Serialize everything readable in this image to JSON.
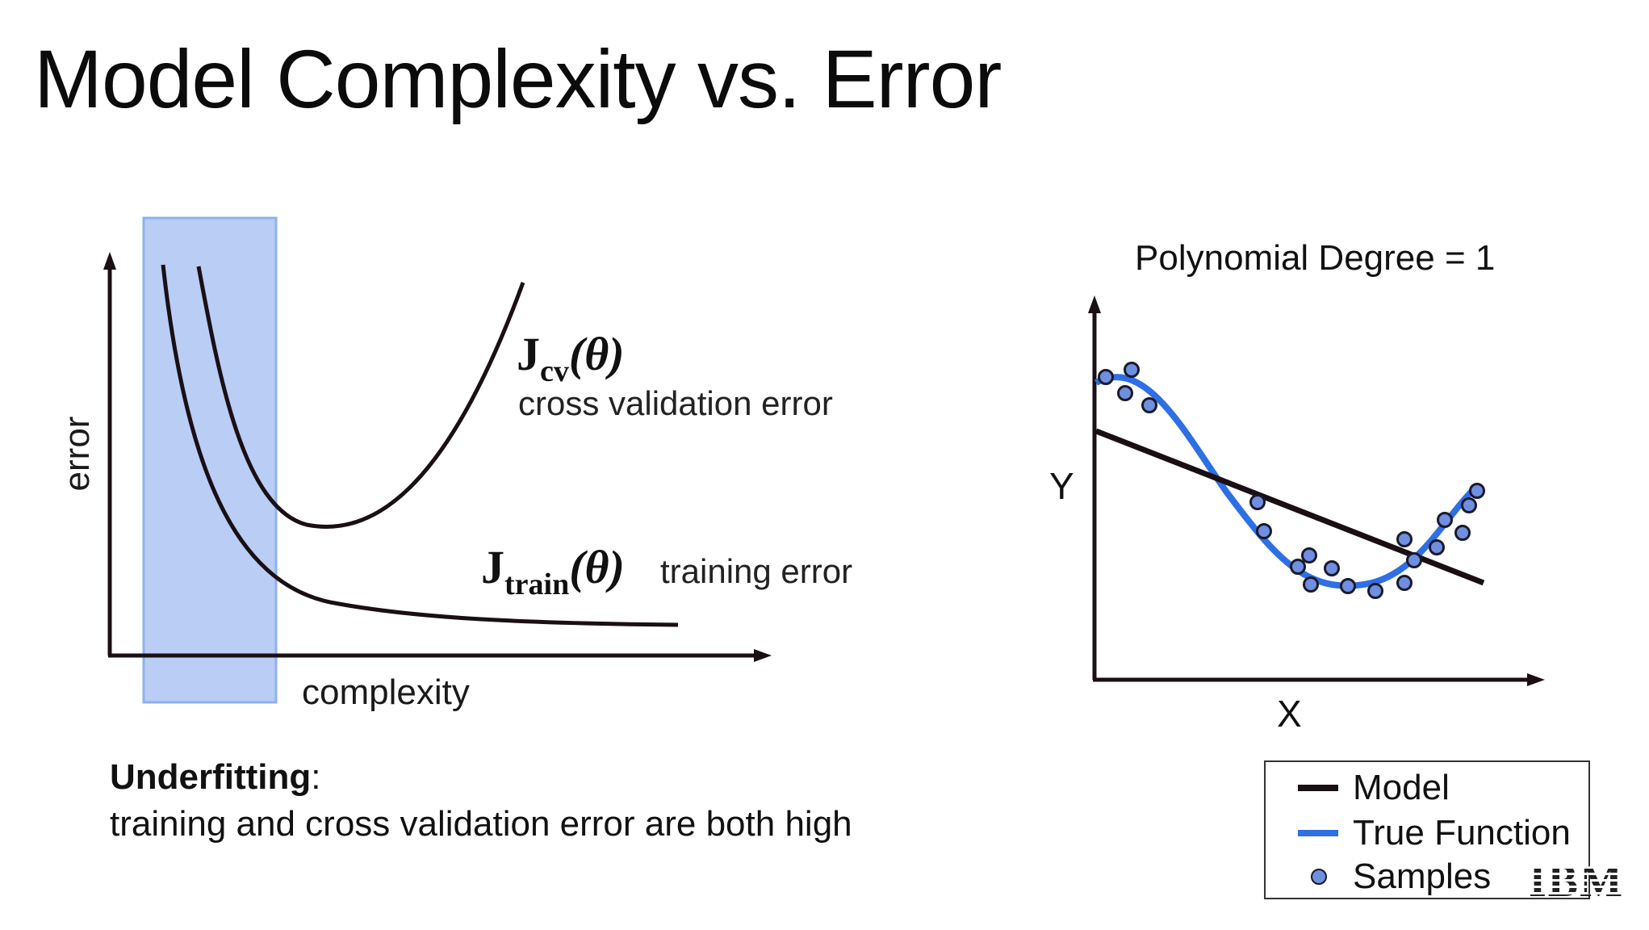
{
  "title": "Model Complexity vs. Error",
  "left_diagram": {
    "y_axis_label": "error",
    "x_axis_label": "complexity",
    "cv_curve": {
      "label_J": "J",
      "label_subscript": "cv",
      "label_theta": "(θ)",
      "description": "cross validation error"
    },
    "train_curve": {
      "label_J": "J",
      "label_subscript": "train",
      "label_theta": "(θ)",
      "description": "training error"
    },
    "highlight_color": "#b9cdf5"
  },
  "caption": {
    "heading": "Underfitting",
    "colon": ":",
    "text": "training and cross validation error are both high"
  },
  "right_plot": {
    "title": "Polynomial Degree = 1",
    "y_axis_label": "Y",
    "x_axis_label": "X",
    "model_color": "#1a0f14",
    "true_function_color": "#2f6fe4",
    "sample_color": "#6f8fe0"
  },
  "legend": {
    "items": [
      {
        "label": "Model",
        "kind": "line",
        "color": "#1a0f14"
      },
      {
        "label": "True Function",
        "kind": "line",
        "color": "#2f6fe4"
      },
      {
        "label": "Samples",
        "kind": "dot",
        "color": "#6f8fe0"
      }
    ]
  },
  "logo": "IBM"
}
